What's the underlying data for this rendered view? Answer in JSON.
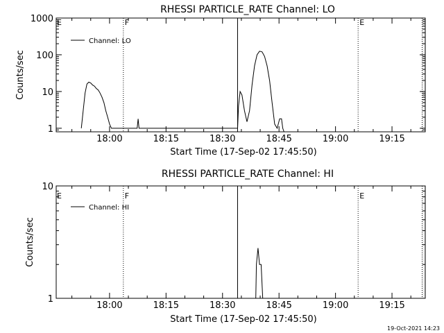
{
  "chart_data": [
    {
      "type": "line",
      "title": "RHESSI PARTICLE_RATE Channel: LO",
      "xlabel": "Start Time (17-Sep-02 17:45:50)",
      "ylabel": "Counts/sec",
      "y_scale": "log",
      "ylim": [
        0.8,
        1000
      ],
      "xlim_minutes_after_start": [
        0,
        98
      ],
      "x_ticks": [
        "18:00",
        "18:15",
        "18:30",
        "18:45",
        "19:00",
        "19:15"
      ],
      "y_ticks": [
        "1",
        "10",
        "100",
        "1000"
      ],
      "legend": {
        "placement": "top-left",
        "entries": [
          "Channel: LO"
        ]
      },
      "series": [
        {
          "name": "Channel: LO",
          "x": [
            "17:52:30",
            "17:53:00",
            "17:53:30",
            "17:54:00",
            "17:54:30",
            "17:55:00",
            "17:55:30",
            "17:56:00",
            "17:56:30",
            "17:57:00",
            "17:57:30",
            "17:58:00",
            "17:58:30",
            "17:59:00",
            "17:59:30",
            "18:00:00",
            "18:00:30",
            "18:07:20",
            "18:07:35",
            "18:07:50",
            "18:34:00",
            "18:34:15",
            "18:34:40",
            "18:35:10",
            "18:35:50",
            "18:36:30",
            "18:37:10",
            "18:37:50",
            "18:38:30",
            "18:39:10",
            "18:39:50",
            "18:40:30",
            "18:41:10",
            "18:41:50",
            "18:42:30",
            "18:43:10",
            "18:43:50",
            "18:44:30",
            "18:45:10",
            "18:45:40",
            "18:46:00",
            "18:46:20"
          ],
          "values": [
            1,
            3,
            9,
            16,
            18,
            17,
            15,
            14,
            12,
            11,
            9,
            7,
            5,
            3,
            2,
            1.3,
            1,
            1,
            1.8,
            1,
            1,
            4,
            10,
            8,
            3,
            1.5,
            3,
            15,
            50,
            100,
            125,
            120,
            90,
            50,
            20,
            5,
            1.3,
            1,
            1.8,
            1.8,
            1,
            0.8
          ]
        }
      ],
      "markers": [
        {
          "label": "F",
          "time": "18:03:40",
          "style": "dotted"
        },
        {
          "label": "E",
          "time": "19:06:00",
          "style": "dotted"
        },
        {
          "label": "",
          "time": "18:34:00",
          "style": "solid"
        },
        {
          "label": "",
          "time": "19:23:00",
          "style": "dotted"
        }
      ],
      "corner_label": "E"
    },
    {
      "type": "line",
      "title": "RHESSI PARTICLE_RATE Channel: HI",
      "xlabel": "Start Time (17-Sep-02 17:45:50)",
      "ylabel": "Counts/sec",
      "y_scale": "log",
      "ylim": [
        1,
        10
      ],
      "xlim_minutes_after_start": [
        0,
        98
      ],
      "x_ticks": [
        "18:00",
        "18:15",
        "18:30",
        "18:45",
        "19:00",
        "19:15"
      ],
      "y_ticks": [
        "1",
        "10"
      ],
      "legend": {
        "placement": "top-left",
        "entries": [
          "Channel: HI"
        ]
      },
      "series": [
        {
          "name": "Channel: HI",
          "x": [
            "18:38:50",
            "18:39:00",
            "18:39:25",
            "18:39:50",
            "18:40:15",
            "18:40:40",
            "18:41:05",
            "18:41:30",
            "18:41:45"
          ],
          "values": [
            1,
            2,
            2.8,
            2,
            2,
            1,
            1,
            1,
            1
          ]
        }
      ],
      "markers": [
        {
          "label": "F",
          "time": "18:03:40",
          "style": "dotted"
        },
        {
          "label": "E",
          "time": "19:06:00",
          "style": "dotted"
        },
        {
          "label": "",
          "time": "18:34:00",
          "style": "solid"
        },
        {
          "label": "",
          "time": "19:23:00",
          "style": "dotted"
        }
      ],
      "corner_label": "E"
    }
  ],
  "footer": {
    "timestamp": "19-Oct-2021 14:23"
  }
}
